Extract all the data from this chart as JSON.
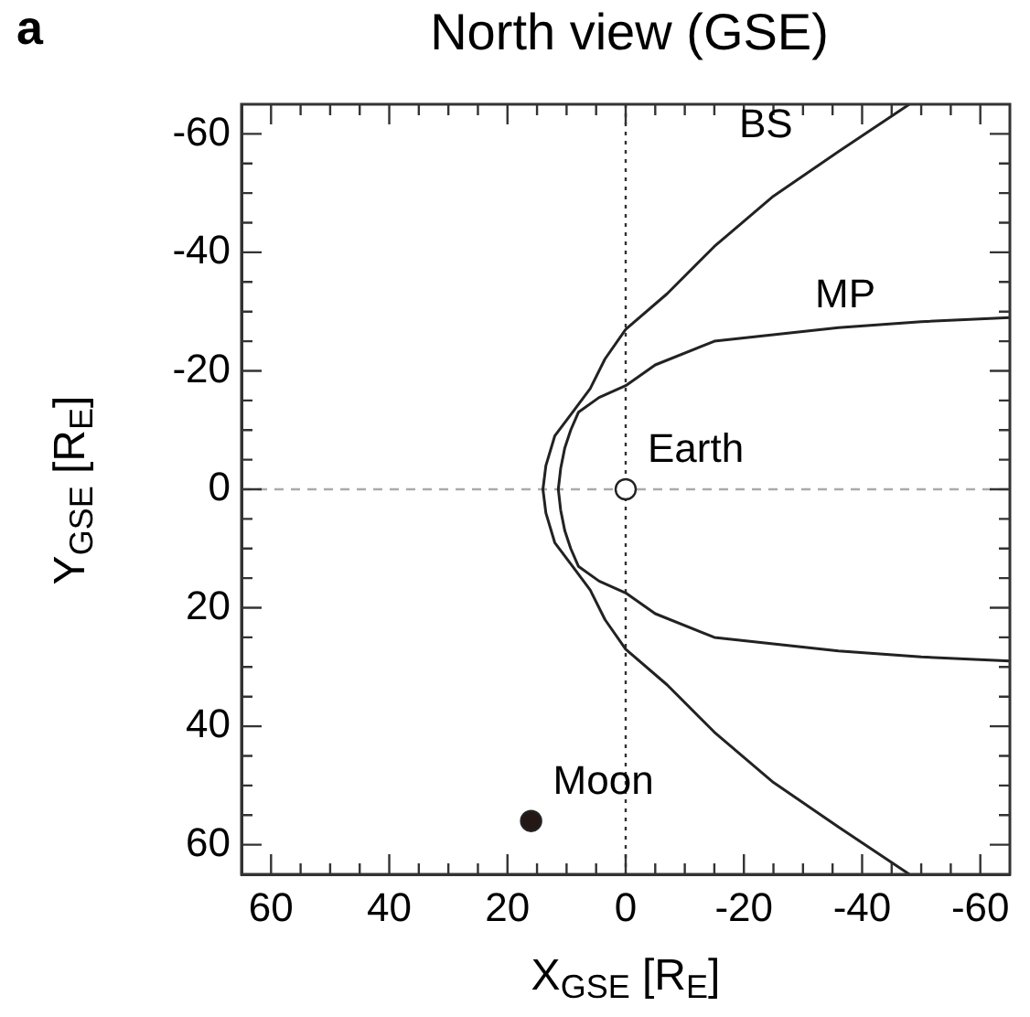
{
  "chart_data": {
    "type": "line",
    "title": "North view (GSE)",
    "xlabel": "X$_{GSE}$ [R$_{E}$]",
    "ylabel": "Y$_{GSE}$ [R$_{E}$]",
    "xlim": [
      65,
      -65
    ],
    "ylim": [
      65,
      -65
    ],
    "xticks": [
      60,
      {
        "value": 55,
        "label": null
      },
      {
        "value": 50,
        "label": null
      },
      {
        "value": 45,
        "label": null
      },
      40,
      {
        "value": 35,
        "label": null
      },
      {
        "value": 30,
        "label": null
      },
      {
        "value": 25,
        "label": null
      },
      20,
      {
        "value": 15,
        "label": null
      },
      {
        "value": 10,
        "label": null
      },
      {
        "value": 5,
        "label": null
      },
      0,
      {
        "value": -5,
        "label": null
      },
      {
        "value": -10,
        "label": null
      },
      {
        "value": -15,
        "label": null
      },
      -20,
      {
        "value": -25,
        "label": null
      },
      {
        "value": -30,
        "label": null
      },
      {
        "value": -35,
        "label": null
      },
      -40,
      {
        "value": -45,
        "label": null
      },
      {
        "value": -50,
        "label": null
      },
      {
        "value": -55,
        "label": null
      },
      -60
    ],
    "yticks": [
      60,
      {
        "value": 55,
        "label": null
      },
      {
        "value": 50,
        "label": null
      },
      {
        "value": 45,
        "label": null
      },
      40,
      {
        "value": 35,
        "label": null
      },
      {
        "value": 30,
        "label": null
      },
      {
        "value": 25,
        "label": null
      },
      20,
      {
        "value": 15,
        "label": null
      },
      {
        "value": 10,
        "label": null
      },
      {
        "value": 5,
        "label": null
      },
      0,
      {
        "value": -5,
        "label": null
      },
      {
        "value": -10,
        "label": null
      },
      {
        "value": -15,
        "label": null
      },
      -20,
      {
        "value": -25,
        "label": null
      },
      {
        "value": -30,
        "label": null
      },
      {
        "value": -35,
        "label": null
      },
      -40,
      {
        "value": -45,
        "label": null
      },
      {
        "value": -50,
        "label": null
      },
      {
        "value": -55,
        "label": null
      },
      -60
    ],
    "series": [
      {
        "name": "BS",
        "color": "#222222",
        "x": [
          -48,
          -36,
          -25,
          -15,
          -7,
          0,
          3.5,
          6,
          9,
          12,
          13.5,
          14,
          13.5,
          12,
          9,
          6,
          3.5,
          0,
          -7,
          -15,
          -25,
          -36,
          -48
        ],
        "values": [
          -65,
          -57,
          -49.5,
          -41,
          -33,
          -27,
          -22,
          -17,
          -13,
          -9,
          -4,
          0,
          4,
          9,
          13,
          17,
          22,
          27,
          33,
          41,
          49.5,
          57,
          65
        ]
      },
      {
        "name": "MP",
        "color": "#222222",
        "x": [
          -65,
          -50,
          -36,
          -15,
          -5,
          0,
          4.5,
          8,
          9.3,
          10.3,
          11,
          11.4,
          11,
          10.3,
          9.3,
          8,
          4.5,
          0,
          -5,
          -15,
          -36,
          -50,
          -65
        ],
        "values": [
          -29,
          -28.3,
          -27.3,
          -25,
          -21,
          -17.5,
          -15.5,
          -13,
          -10,
          -7,
          -3.5,
          0,
          3.5,
          7,
          10,
          13,
          15.5,
          17.5,
          21,
          25,
          27.3,
          28.3,
          29
        ]
      },
      {
        "name": "Earth",
        "type": "scatter",
        "marker": "circle",
        "color": "#ffffff",
        "x": [
          0
        ],
        "values": [
          0
        ]
      },
      {
        "name": "Moon",
        "type": "scatter",
        "marker": "circle",
        "color": "#231815",
        "x": [
          16
        ],
        "values": [
          56
        ]
      }
    ],
    "ref_lines": [
      {
        "axis": "x",
        "value": 0,
        "color": "#333333",
        "line_style": "dotted"
      },
      {
        "axis": "y",
        "value": 0,
        "color": "#aaaaaa",
        "line_style": "dashed"
      }
    ],
    "annotations": [
      "a"
    ]
  }
}
